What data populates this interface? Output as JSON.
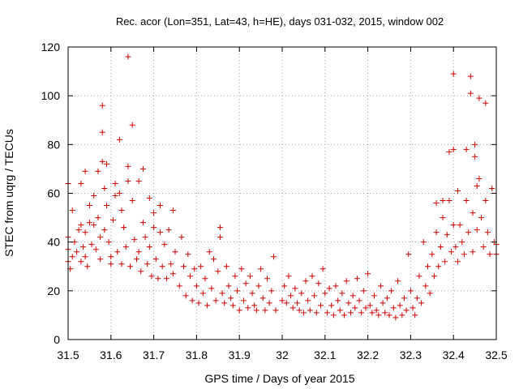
{
  "chart_data": {
    "type": "scatter",
    "title": "Rec. acor (Lon=351, Lat=43, h=HE), days 031-032, 2015, window 002",
    "xlabel": "GPS time / Days of year 2015",
    "ylabel": "STEC from uqrg / TECUs",
    "xlim": [
      31.5,
      32.5
    ],
    "ylim": [
      0,
      120
    ],
    "xticks": [
      31.5,
      31.6,
      31.7,
      31.8,
      31.9,
      32.0,
      32.1,
      32.2,
      32.3,
      32.4,
      32.5
    ],
    "xtick_labels": [
      "31.5",
      "31.6",
      "31.7",
      "31.8",
      "31.9",
      "32",
      "32.1",
      "32.2",
      "32.3",
      "32.4",
      "32.5"
    ],
    "yticks": [
      0,
      20,
      40,
      60,
      80,
      100,
      120
    ],
    "ytick_labels": [
      "0",
      "20",
      "40",
      "60",
      "80",
      "100",
      "120"
    ],
    "grid": true,
    "marker": "+",
    "color": "#cc0000",
    "series": [
      {
        "name": "STEC",
        "points": [
          [
            31.5,
            64
          ],
          [
            31.5,
            42
          ],
          [
            31.5,
            37
          ],
          [
            31.5,
            32
          ],
          [
            31.505,
            29
          ],
          [
            31.51,
            53
          ],
          [
            31.51,
            34
          ],
          [
            31.515,
            40
          ],
          [
            31.52,
            36
          ],
          [
            31.525,
            45
          ],
          [
            31.53,
            64
          ],
          [
            31.53,
            47
          ],
          [
            31.53,
            32
          ],
          [
            31.535,
            38
          ],
          [
            31.54,
            69
          ],
          [
            31.54,
            44
          ],
          [
            31.54,
            34
          ],
          [
            31.545,
            30
          ],
          [
            31.55,
            55
          ],
          [
            31.55,
            48
          ],
          [
            31.555,
            39
          ],
          [
            31.56,
            59
          ],
          [
            31.56,
            47
          ],
          [
            31.565,
            37
          ],
          [
            31.57,
            69
          ],
          [
            31.57,
            50
          ],
          [
            31.575,
            42
          ],
          [
            31.575,
            33
          ],
          [
            31.58,
            96
          ],
          [
            31.58,
            85
          ],
          [
            31.58,
            73
          ],
          [
            31.585,
            62
          ],
          [
            31.585,
            45
          ],
          [
            31.59,
            72
          ],
          [
            31.59,
            55
          ],
          [
            31.595,
            40
          ],
          [
            31.6,
            34
          ],
          [
            31.6,
            31
          ],
          [
            31.605,
            49
          ],
          [
            31.61,
            64
          ],
          [
            31.61,
            59
          ],
          [
            31.615,
            36
          ],
          [
            31.62,
            82
          ],
          [
            31.62,
            60
          ],
          [
            31.625,
            53
          ],
          [
            31.625,
            31
          ],
          [
            31.63,
            46
          ],
          [
            31.635,
            38
          ],
          [
            31.64,
            116
          ],
          [
            31.64,
            71
          ],
          [
            31.64,
            65
          ],
          [
            31.645,
            30
          ],
          [
            31.65,
            88
          ],
          [
            31.65,
            57
          ],
          [
            31.655,
            41
          ],
          [
            31.66,
            33
          ],
          [
            31.665,
            65
          ],
          [
            31.665,
            36
          ],
          [
            31.67,
            28
          ],
          [
            31.675,
            70
          ],
          [
            31.675,
            48
          ],
          [
            31.68,
            42
          ],
          [
            31.685,
            31
          ],
          [
            31.69,
            58
          ],
          [
            31.69,
            38
          ],
          [
            31.695,
            26
          ],
          [
            31.7,
            52
          ],
          [
            31.7,
            46
          ],
          [
            31.705,
            33
          ],
          [
            31.71,
            25
          ],
          [
            31.715,
            55
          ],
          [
            31.715,
            44
          ],
          [
            31.72,
            30
          ],
          [
            31.725,
            39
          ],
          [
            31.73,
            25
          ],
          [
            31.735,
            45
          ],
          [
            31.74,
            31
          ],
          [
            31.745,
            53
          ],
          [
            31.745,
            27
          ],
          [
            31.75,
            36
          ],
          [
            31.76,
            22
          ],
          [
            31.765,
            42
          ],
          [
            31.77,
            30
          ],
          [
            31.775,
            18
          ],
          [
            31.78,
            35
          ],
          [
            31.785,
            26
          ],
          [
            31.79,
            16
          ],
          [
            31.795,
            29
          ],
          [
            31.8,
            22
          ],
          [
            31.805,
            15
          ],
          [
            31.81,
            30
          ],
          [
            31.815,
            19
          ],
          [
            31.82,
            25
          ],
          [
            31.825,
            14
          ],
          [
            31.83,
            36
          ],
          [
            31.835,
            21
          ],
          [
            31.84,
            33
          ],
          [
            31.845,
            16
          ],
          [
            31.85,
            28
          ],
          [
            31.855,
            46
          ],
          [
            31.855,
            42
          ],
          [
            31.86,
            19
          ],
          [
            31.865,
            15
          ],
          [
            31.87,
            30
          ],
          [
            31.875,
            22
          ],
          [
            31.88,
            17
          ],
          [
            31.885,
            14
          ],
          [
            31.89,
            26
          ],
          [
            31.895,
            20
          ],
          [
            31.9,
            12
          ],
          [
            31.905,
            29
          ],
          [
            31.91,
            16
          ],
          [
            31.915,
            23
          ],
          [
            31.92,
            13
          ],
          [
            31.925,
            26
          ],
          [
            31.93,
            19
          ],
          [
            31.935,
            14
          ],
          [
            31.94,
            12
          ],
          [
            31.945,
            22
          ],
          [
            31.95,
            29
          ],
          [
            31.955,
            17
          ],
          [
            31.96,
            12
          ],
          [
            31.965,
            25
          ],
          [
            31.97,
            15
          ],
          [
            31.975,
            20
          ],
          [
            31.98,
            34
          ],
          [
            31.985,
            12
          ],
          [
            32.0,
            16
          ],
          [
            32.005,
            22
          ],
          [
            32.01,
            15
          ],
          [
            32.015,
            26
          ],
          [
            32.02,
            18
          ],
          [
            32.025,
            13
          ],
          [
            32.03,
            21
          ],
          [
            32.035,
            15
          ],
          [
            32.04,
            12
          ],
          [
            32.045,
            19
          ],
          [
            32.05,
            11
          ],
          [
            32.055,
            24
          ],
          [
            32.06,
            16
          ],
          [
            32.065,
            12
          ],
          [
            32.07,
            26
          ],
          [
            32.075,
            18
          ],
          [
            32.08,
            11
          ],
          [
            32.085,
            23
          ],
          [
            32.09,
            14
          ],
          [
            32.095,
            29
          ],
          [
            32.1,
            19
          ],
          [
            32.105,
            11
          ],
          [
            32.11,
            21
          ],
          [
            32.115,
            14
          ],
          [
            32.12,
            10
          ],
          [
            32.125,
            22
          ],
          [
            32.13,
            16
          ],
          [
            32.135,
            12
          ],
          [
            32.14,
            19
          ],
          [
            32.145,
            10
          ],
          [
            32.15,
            24
          ],
          [
            32.155,
            15
          ],
          [
            32.16,
            11
          ],
          [
            32.165,
            18
          ],
          [
            32.17,
            13
          ],
          [
            32.175,
            25
          ],
          [
            32.18,
            16
          ],
          [
            32.185,
            11
          ],
          [
            32.19,
            20
          ],
          [
            32.195,
            13
          ],
          [
            32.2,
            27
          ],
          [
            32.205,
            14
          ],
          [
            32.21,
            11
          ],
          [
            32.215,
            18
          ],
          [
            32.22,
            12
          ],
          [
            32.225,
            10
          ],
          [
            32.23,
            22
          ],
          [
            32.235,
            15
          ],
          [
            32.24,
            11
          ],
          [
            32.245,
            17
          ],
          [
            32.25,
            10
          ],
          [
            32.255,
            20
          ],
          [
            32.26,
            13
          ],
          [
            32.265,
            9
          ],
          [
            32.27,
            24
          ],
          [
            32.275,
            14
          ],
          [
            32.28,
            10
          ],
          [
            32.285,
            17
          ],
          [
            32.29,
            12
          ],
          [
            32.295,
            35
          ],
          [
            32.3,
            20
          ],
          [
            32.305,
            13
          ],
          [
            32.31,
            10
          ],
          [
            32.315,
            17
          ],
          [
            32.32,
            26
          ],
          [
            32.325,
            15
          ],
          [
            32.33,
            40
          ],
          [
            32.335,
            22
          ],
          [
            32.34,
            30
          ],
          [
            32.345,
            19
          ],
          [
            32.35,
            35
          ],
          [
            32.355,
            26
          ],
          [
            32.36,
            44
          ],
          [
            32.36,
            56
          ],
          [
            32.365,
            30
          ],
          [
            32.37,
            38
          ],
          [
            32.375,
            57
          ],
          [
            32.375,
            50
          ],
          [
            32.38,
            32
          ],
          [
            32.385,
            43
          ],
          [
            32.39,
            77
          ],
          [
            32.39,
            57
          ],
          [
            32.395,
            36
          ],
          [
            32.4,
            109
          ],
          [
            32.4,
            78
          ],
          [
            32.4,
            47
          ],
          [
            32.405,
            38
          ],
          [
            32.41,
            61
          ],
          [
            32.41,
            32
          ],
          [
            32.415,
            47
          ],
          [
            32.42,
            40
          ],
          [
            32.425,
            35
          ],
          [
            32.43,
            78
          ],
          [
            32.43,
            57
          ],
          [
            32.435,
            44
          ],
          [
            32.44,
            108
          ],
          [
            32.44,
            101
          ],
          [
            32.445,
            52
          ],
          [
            32.445,
            36
          ],
          [
            32.45,
            80
          ],
          [
            32.45,
            75
          ],
          [
            32.455,
            63
          ],
          [
            32.455,
            45
          ],
          [
            32.46,
            99
          ],
          [
            32.46,
            66
          ],
          [
            32.465,
            50
          ],
          [
            32.47,
            38
          ],
          [
            32.475,
            97
          ],
          [
            32.475,
            57
          ],
          [
            32.48,
            44
          ],
          [
            32.485,
            35
          ],
          [
            32.49,
            62
          ],
          [
            32.495,
            40
          ],
          [
            32.5,
            39
          ],
          [
            32.5,
            35
          ]
        ]
      }
    ]
  }
}
